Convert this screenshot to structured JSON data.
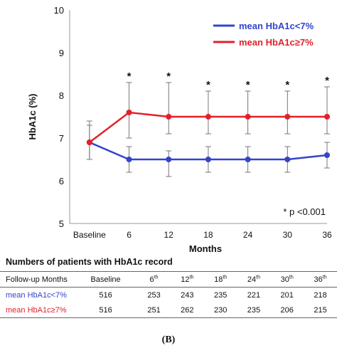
{
  "chart_data": {
    "type": "line",
    "ylabel": "HbA1c (%)",
    "xlabel": "Months",
    "ylim": [
      5,
      10
    ],
    "yticks": [
      "5",
      "6",
      "7",
      "8",
      "9",
      "10"
    ],
    "categories": [
      "Baseline",
      "6",
      "12",
      "18",
      "24",
      "30",
      "36"
    ],
    "grid": false,
    "legend_position": "top-right",
    "series": [
      {
        "name": "mean HbA1c<7%",
        "color": "#3344cc",
        "values": [
          6.9,
          6.5,
          6.5,
          6.5,
          6.5,
          6.5,
          6.6
        ],
        "error_low": [
          6.5,
          6.2,
          6.1,
          6.2,
          6.2,
          6.2,
          6.3
        ],
        "error_high": [
          7.3,
          6.8,
          6.7,
          6.8,
          6.8,
          6.8,
          6.9
        ]
      },
      {
        "name": "mean HbA1c≥7%",
        "color": "#e3202a",
        "values": [
          6.9,
          7.6,
          7.5,
          7.5,
          7.5,
          7.5,
          7.5
        ],
        "error_low": [
          6.5,
          7.0,
          7.1,
          7.1,
          7.1,
          7.1,
          7.1
        ],
        "error_high": [
          7.4,
          8.3,
          8.3,
          8.1,
          8.1,
          8.1,
          8.2
        ]
      }
    ],
    "significance_marks": [
      "",
      "*",
      "*",
      "*",
      "*",
      "*",
      "*"
    ],
    "annotation": "* p <0.001"
  },
  "table": {
    "title": "Numbers of patients with HbA1c record",
    "header": {
      "label": "Follow-up Months",
      "cols": [
        {
          "num": "Baseline",
          "sup": ""
        },
        {
          "num": "6",
          "sup": "th"
        },
        {
          "num": "12",
          "sup": "th"
        },
        {
          "num": "18",
          "sup": "th"
        },
        {
          "num": "24",
          "sup": "th"
        },
        {
          "num": "30",
          "sup": "th"
        },
        {
          "num": "36",
          "sup": "th"
        }
      ]
    },
    "rows": [
      {
        "label": "mean HbA1c<7%",
        "values": [
          "516",
          "253",
          "243",
          "235",
          "221",
          "201",
          "218"
        ]
      },
      {
        "label": "mean HbA1c≥7%",
        "values": [
          "516",
          "251",
          "262",
          "230",
          "235",
          "206",
          "215"
        ]
      }
    ]
  },
  "panel_label": "(B)"
}
